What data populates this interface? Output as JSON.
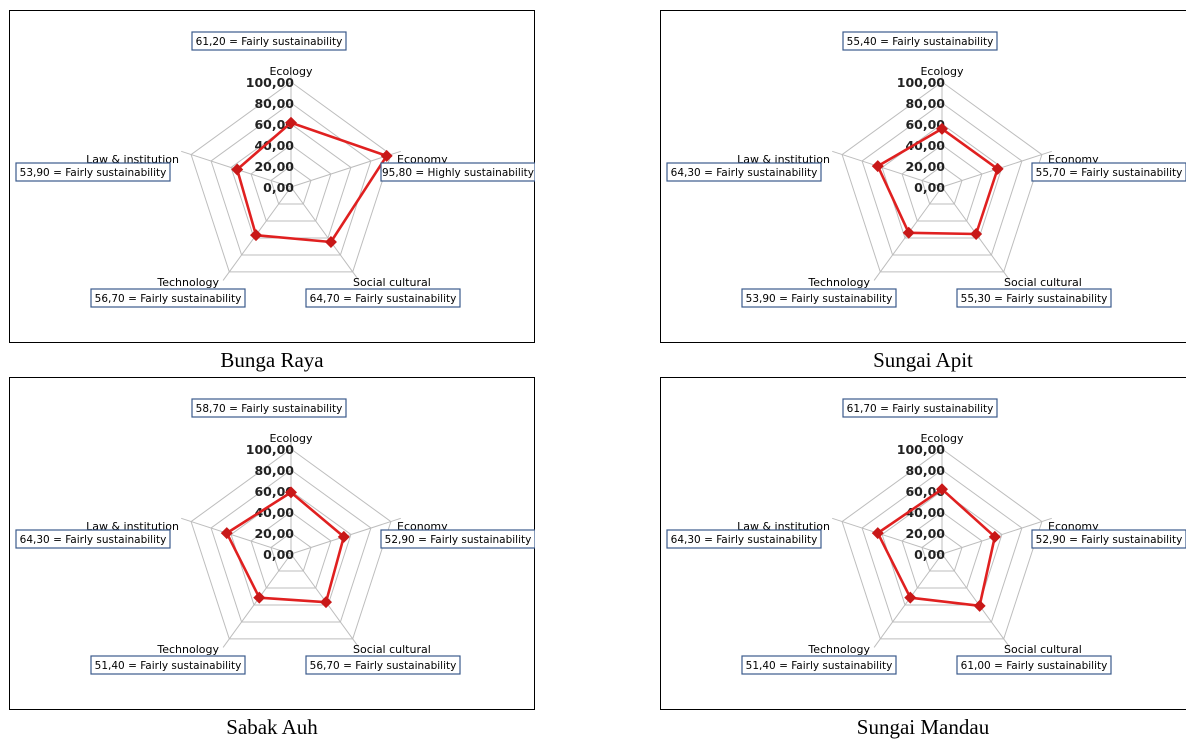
{
  "chart_data": [
    {
      "type": "radar",
      "title": "Bunga Raya",
      "axes": [
        "Ecology",
        "Economy",
        "Social cultural",
        "Technology",
        "Law & institution"
      ],
      "values": [
        61.2,
        95.8,
        64.7,
        56.7,
        53.9
      ],
      "labels": [
        "61,20 = Fairly sustainability",
        "95,80 = Highly sustainability",
        "64,70 = Fairly sustainability",
        "56,70 = Fairly sustainability",
        "53,90 = Fairly sustainability"
      ],
      "ticks": [
        "0,00",
        "20,00",
        "40,00",
        "60,00",
        "80,00",
        "100,00"
      ],
      "range": [
        0,
        100
      ]
    },
    {
      "type": "radar",
      "title": "Sungai Apit",
      "axes": [
        "Ecology",
        "Economy",
        "Social cultural",
        "Technology",
        "Law & institution"
      ],
      "values": [
        55.4,
        55.7,
        55.3,
        53.9,
        64.3
      ],
      "labels": [
        "55,40 = Fairly sustainability",
        "55,70 = Fairly sustainability",
        "55,30 = Fairly sustainability",
        "53,90 = Fairly sustainability",
        "64,30 = Fairly sustainability"
      ],
      "ticks": [
        "0,00",
        "20,00",
        "40,00",
        "60,00",
        "80,00",
        "100,00"
      ],
      "range": [
        0,
        100
      ]
    },
    {
      "type": "radar",
      "title": "Sabak Auh",
      "axes": [
        "Ecology",
        "Economy",
        "Social cultural",
        "Technology",
        "Law & institution"
      ],
      "values": [
        58.7,
        52.9,
        56.7,
        51.4,
        64.3
      ],
      "labels": [
        "58,70 = Fairly sustainability",
        "52,90 = Fairly sustainability",
        "56,70 = Fairly sustainability",
        "51,40 = Fairly sustainability",
        "64,30 = Fairly sustainability"
      ],
      "ticks": [
        "0,00",
        "20,00",
        "40,00",
        "60,00",
        "80,00",
        "100,00"
      ],
      "range": [
        0,
        100
      ]
    },
    {
      "type": "radar",
      "title": "Sungai Mandau",
      "axes": [
        "Ecology",
        "Economy",
        "Social cultural",
        "Technology",
        "Law & institution"
      ],
      "values": [
        61.7,
        52.9,
        61.0,
        51.4,
        64.3
      ],
      "labels": [
        "61,70 = Fairly sustainability",
        "52,90 = Fairly sustainability",
        "61,00 = Fairly sustainability",
        "51,40 = Fairly sustainability",
        "64,30 = Fairly sustainability"
      ],
      "ticks": [
        "0,00",
        "20,00",
        "40,00",
        "60,00",
        "80,00",
        "100,00"
      ],
      "range": [
        0,
        100
      ]
    }
  ],
  "colors": {
    "series": "#e02020",
    "marker": "#c81818",
    "grid": "#bdbdbd",
    "box_border": "#3b5b8c"
  }
}
